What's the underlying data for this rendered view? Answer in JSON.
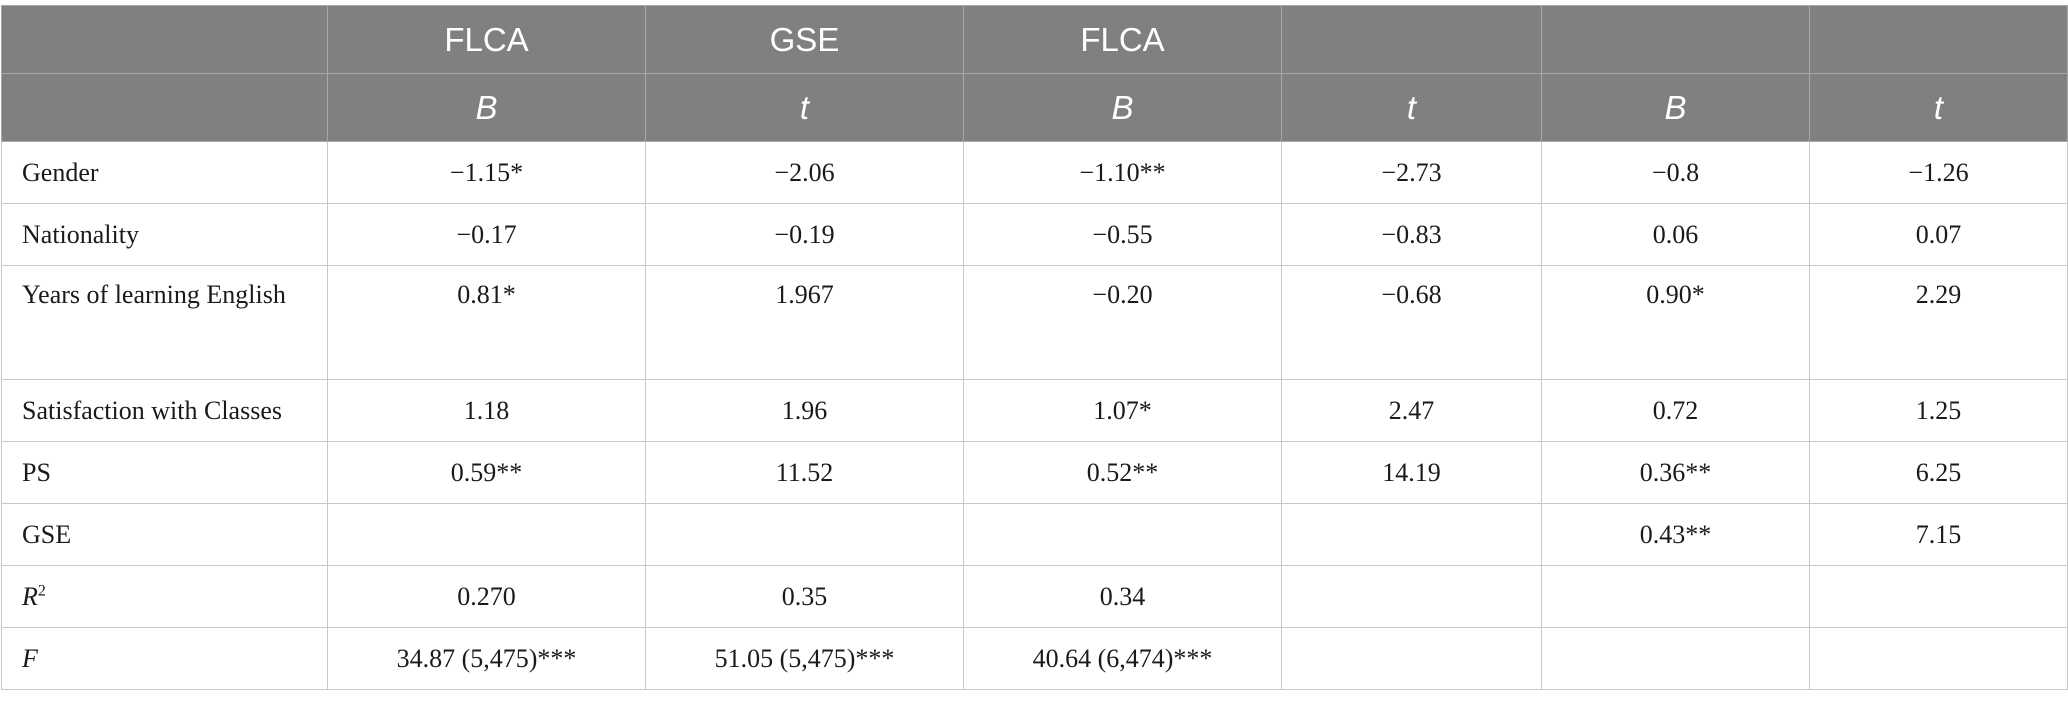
{
  "header": {
    "row1": [
      "",
      "FLCA",
      "GSE",
      "FLCA",
      "",
      "",
      ""
    ],
    "row2": [
      "",
      "B",
      "t",
      "B",
      "t",
      "B",
      "t"
    ]
  },
  "rows": [
    {
      "label": "Gender",
      "cells": [
        "−1.15*",
        "−2.06",
        "−1.10**",
        "−2.73",
        "−0.8",
        "−1.26"
      ]
    },
    {
      "label": "Nationality",
      "cells": [
        "−0.17",
        "−0.19",
        "−0.55",
        "−0.83",
        "0.06",
        "0.07"
      ]
    },
    {
      "label": "Years of learning English",
      "cells": [
        "0.81*",
        "1.967",
        "−0.20",
        "−0.68",
        "0.90*",
        "2.29"
      ]
    },
    {
      "label": "Satisfaction with Classes",
      "cells": [
        "1.18",
        "1.96",
        "1.07*",
        "2.47",
        "0.72",
        "1.25"
      ]
    },
    {
      "label": "PS",
      "cells": [
        "0.59**",
        "11.52",
        "0.52**",
        "14.19",
        "0.36**",
        "6.25"
      ]
    },
    {
      "label": "GSE",
      "cells": [
        "",
        "",
        "",
        "",
        "0.43**",
        "7.15"
      ]
    },
    {
      "label": "R",
      "label_sup": "2",
      "cells": [
        "0.270",
        "0.35",
        "0.34",
        "",
        "",
        ""
      ]
    },
    {
      "label": "F",
      "cells": [
        "34.87 (5,475)***",
        "51.05 (5,475)***",
        "40.64 (6,474)***",
        "",
        "",
        ""
      ]
    }
  ]
}
